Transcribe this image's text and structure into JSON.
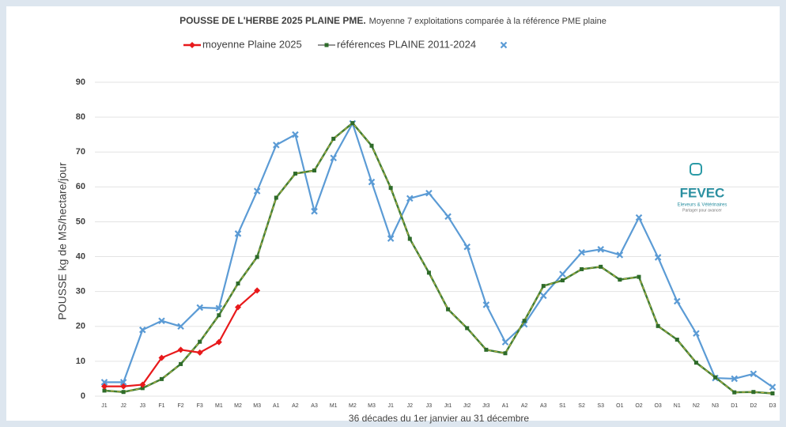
{
  "chart_data": {
    "type": "line",
    "title": "POUSSE DE L'HERBE 2025 PLAINE PME.",
    "subtitle": "Moyenne 7 exploitations comparée à la référence PME plaine",
    "y_label": "POUSSE kg de MS/hectare/jour",
    "x_label": "36 décades du 1er janvier au 31 décembre",
    "annotations": [
      "FEVEC",
      "Eleveurs & Vétérinaires",
      "Partager pour avancer"
    ],
    "categories": [
      "J1",
      "J2",
      "J3",
      "F1",
      "F2",
      "F3",
      "M1",
      "M2",
      "M3",
      "A1",
      "A2",
      "A3",
      "M1",
      "M2",
      "M3",
      "J1",
      "J2",
      "J3",
      "Jt1",
      "Jt2",
      "Jt3",
      "A1",
      "A2",
      "A3",
      "S1",
      "S2",
      "S3",
      "O1",
      "O2",
      "O3",
      "N1",
      "N2",
      "N3",
      "D1",
      "D2",
      "D3"
    ],
    "series": [
      {
        "name": "moyenne Plaine 2025",
        "color": "#e8191b",
        "values": [
          2.8,
          2.8,
          3.3,
          11,
          13.3,
          12.5,
          15.5,
          25.5,
          30.3,
          null,
          null,
          null,
          null,
          null,
          null,
          null,
          null,
          null,
          null,
          null,
          null,
          null,
          null,
          null,
          null,
          null,
          null,
          null,
          null,
          null,
          null,
          null,
          null,
          null,
          null,
          null
        ]
      },
      {
        "name": "références PLAINE 2011-2024",
        "color": "#3f7d33",
        "values": [
          1.6,
          1.2,
          2.3,
          4.9,
          9.2,
          15.6,
          23.2,
          32.3,
          39.9,
          56.9,
          63.8,
          64.7,
          73.8,
          78.3,
          71.8,
          59.7,
          45.1,
          35.4,
          24.9,
          19.5,
          13.3,
          12.3,
          21.6,
          31.6,
          33.2,
          36.4,
          37.1,
          33.4,
          34.2,
          20.1,
          16.2,
          9.6,
          5.4,
          1.1,
          1.2,
          0.8
        ]
      },
      {
        "color": "#5b9bd5",
        "values": [
          4,
          4,
          19,
          21.6,
          20,
          25.4,
          25.2,
          46.6,
          58.8,
          72,
          75,
          53,
          68.3,
          78.2,
          61.4,
          45.2,
          56.7,
          58.2,
          51.5,
          42.8,
          26.2,
          15.5,
          20.6,
          28.8,
          35,
          41.2,
          42.1,
          40.5,
          51.2,
          39.8,
          27.2,
          18,
          5.2,
          5,
          6.4,
          2.6
        ]
      }
    ],
    "ylim": [
      0,
      90
    ],
    "yticks": [
      0,
      10,
      20,
      30,
      40,
      50,
      60,
      70,
      80,
      90
    ],
    "grid": true
  }
}
